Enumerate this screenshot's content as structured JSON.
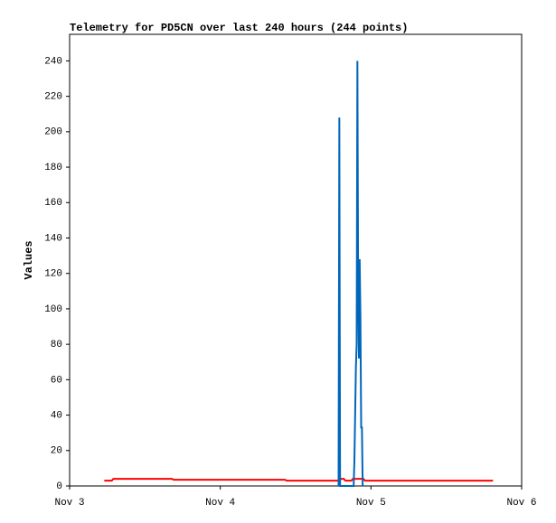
{
  "chart_data": {
    "type": "line",
    "title": "Telemetry for PD5CN over last 240 hours (244 points)",
    "y_label": "Values",
    "xlim": [
      0,
      3
    ],
    "xticks": [
      {
        "value": 0,
        "label": "Nov 3"
      },
      {
        "value": 1,
        "label": "Nov 4"
      },
      {
        "value": 2,
        "label": "Nov 5"
      },
      {
        "value": 3,
        "label": "Nov 6"
      }
    ],
    "ylim": [
      0,
      255
    ],
    "yticks": [
      0,
      20,
      40,
      60,
      80,
      100,
      120,
      140,
      160,
      180,
      200,
      220,
      240
    ],
    "series": [
      {
        "color": "#ff0000",
        "x": [
          0.23,
          0.28,
          0.29,
          0.68,
          0.69,
          1.43,
          1.44,
          1.79,
          1.8,
          1.82,
          1.83,
          1.87,
          1.88,
          1.95,
          1.96,
          2.0,
          2.01,
          2.81
        ],
        "values": [
          3,
          3,
          4,
          4,
          3.5,
          3.5,
          3,
          3,
          4,
          4,
          3,
          3,
          4,
          4,
          3,
          3,
          3,
          3
        ]
      },
      {
        "color": "#0066bb",
        "x": [
          1.785,
          1.79,
          1.795,
          1.885,
          1.89,
          1.895,
          1.9,
          1.905,
          1.91,
          1.915,
          1.92,
          1.925,
          1.93,
          1.935,
          1.94,
          1.945
        ],
        "values": [
          0,
          208,
          0,
          0,
          14,
          40,
          67,
          80,
          240,
          110,
          72,
          128,
          96,
          33,
          33,
          0
        ]
      }
    ]
  }
}
